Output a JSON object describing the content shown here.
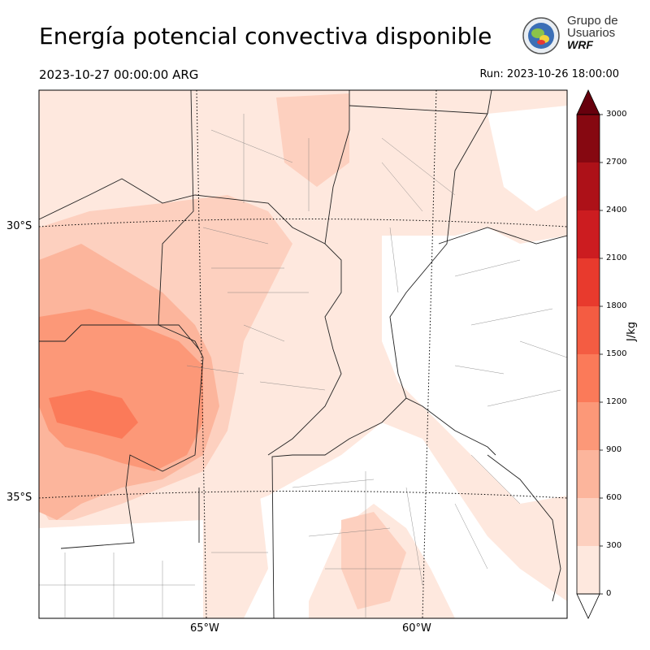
{
  "header": {
    "title": "Energía potencial convectiva disponible",
    "valid_time": "2023-10-27 00:00:00 ARG",
    "run_time": "Run: 2023-10-26 18:00:00"
  },
  "logo": {
    "line1": "Grupo de",
    "line2": "Usuarios",
    "line3": "WRF"
  },
  "map": {
    "lat_labels": [
      "30°S",
      "35°S"
    ],
    "lon_labels": [
      "65°W",
      "60°W"
    ]
  },
  "colorbar": {
    "unit": "J/kg",
    "ticks": [
      "0",
      "300",
      "600",
      "900",
      "1200",
      "1500",
      "1800",
      "2100",
      "2400",
      "2700",
      "3000"
    ],
    "colors": [
      "#fee8de",
      "#fdd0bf",
      "#fcb59c",
      "#fc9878",
      "#fb7a59",
      "#f45c42",
      "#e83a2d",
      "#cc1c20",
      "#ad1118",
      "#860811",
      "#67000d"
    ]
  }
}
